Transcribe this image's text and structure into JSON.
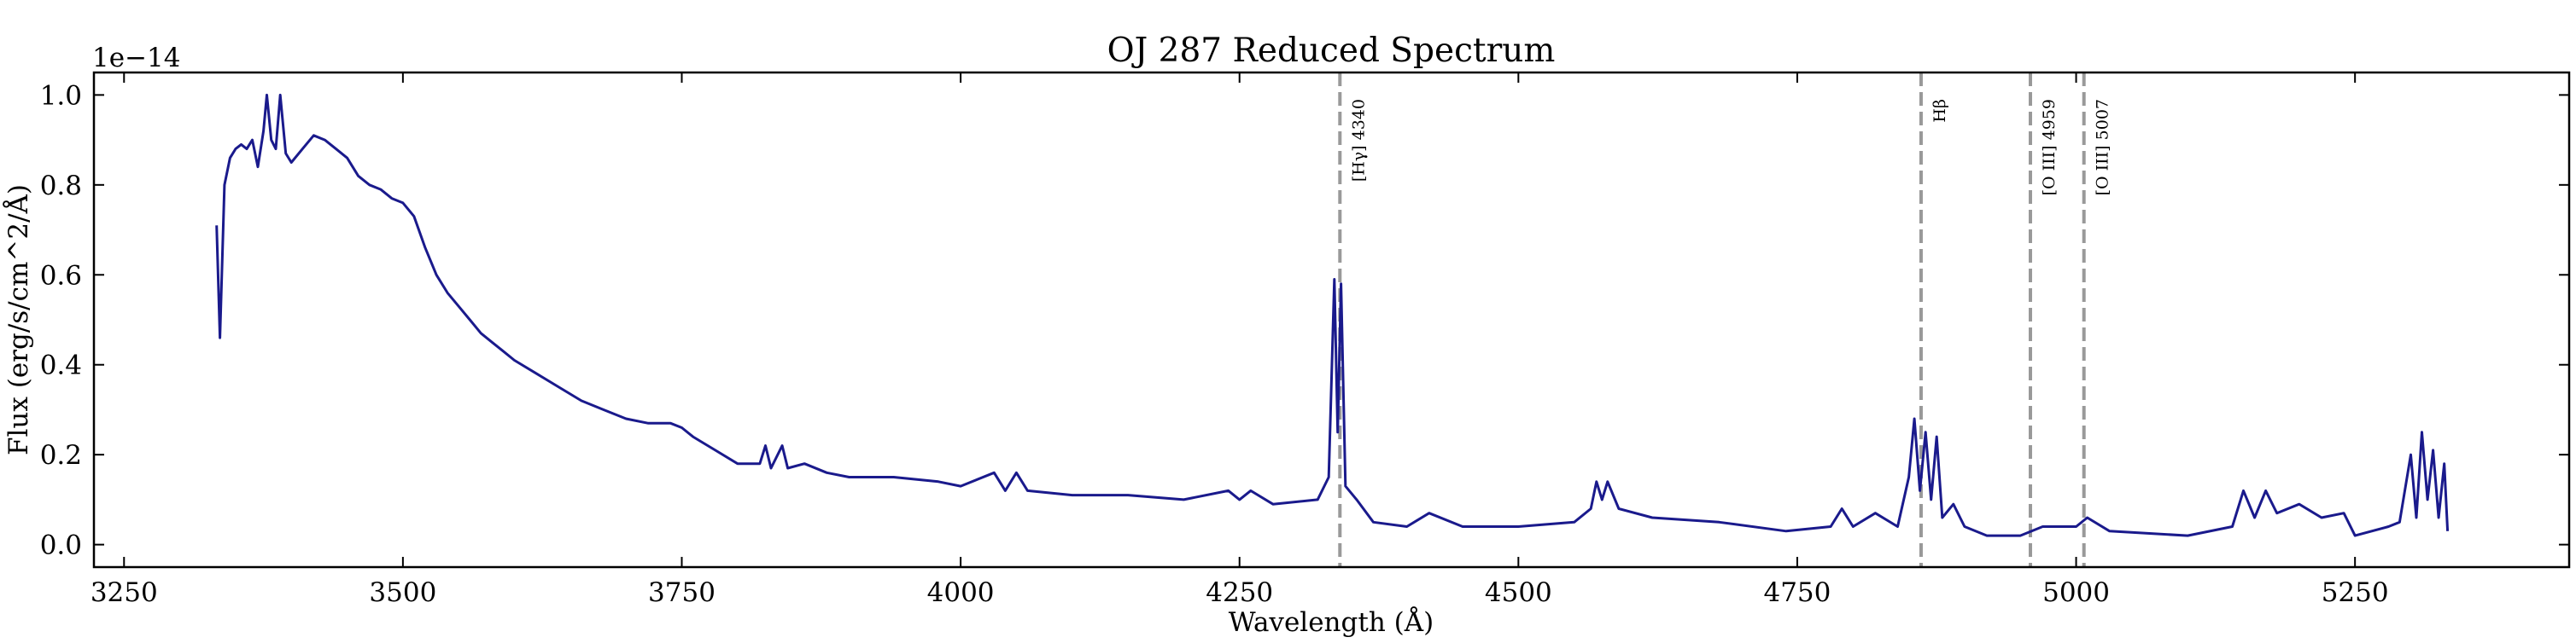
{
  "chart_data": {
    "type": "line",
    "title": "OJ 287 Reduced Spectrum",
    "x_label": "Wavelength (Å)",
    "y_label": "Flux (erg/s/cm^2/Å)",
    "y_offset_label": "1e−14",
    "x": [
      3333,
      3336,
      3340,
      3345,
      3350,
      3355,
      3360,
      3365,
      3370,
      3375,
      3378,
      3382,
      3386,
      3390,
      3395,
      3400,
      3410,
      3420,
      3430,
      3440,
      3450,
      3460,
      3470,
      3480,
      3490,
      3500,
      3510,
      3520,
      3530,
      3540,
      3550,
      3560,
      3570,
      3580,
      3590,
      3600,
      3620,
      3640,
      3660,
      3680,
      3700,
      3720,
      3740,
      3750,
      3760,
      3780,
      3800,
      3820,
      3825,
      3830,
      3840,
      3845,
      3860,
      3880,
      3900,
      3940,
      3980,
      4000,
      4030,
      4040,
      4050,
      4060,
      4100,
      4150,
      4200,
      4240,
      4250,
      4260,
      4280,
      4320,
      4330,
      4335,
      4338,
      4341,
      4345,
      4355,
      4370,
      4400,
      4420,
      4450,
      4500,
      4550,
      4565,
      4570,
      4575,
      4580,
      4590,
      4620,
      4680,
      4740,
      4780,
      4790,
      4800,
      4820,
      4840,
      4850,
      4855,
      4860,
      4865,
      4870,
      4875,
      4880,
      4890,
      4900,
      4920,
      4950,
      4970,
      5000,
      5010,
      5030,
      5100,
      5140,
      5150,
      5160,
      5170,
      5180,
      5200,
      5220,
      5240,
      5250,
      5280,
      5290,
      5300,
      5305,
      5310,
      5315,
      5320,
      5325,
      5330,
      5333
    ],
    "series": [
      {
        "color": "#1a1a8c",
        "values": [
          0.71,
          0.46,
          0.8,
          0.86,
          0.88,
          0.89,
          0.88,
          0.9,
          0.84,
          0.92,
          1.0,
          0.9,
          0.88,
          1.0,
          0.87,
          0.85,
          0.88,
          0.91,
          0.9,
          0.88,
          0.86,
          0.82,
          0.8,
          0.79,
          0.77,
          0.76,
          0.73,
          0.66,
          0.6,
          0.56,
          0.53,
          0.5,
          0.47,
          0.45,
          0.43,
          0.41,
          0.38,
          0.35,
          0.32,
          0.3,
          0.28,
          0.27,
          0.27,
          0.26,
          0.24,
          0.21,
          0.18,
          0.18,
          0.22,
          0.17,
          0.22,
          0.17,
          0.18,
          0.16,
          0.15,
          0.15,
          0.14,
          0.13,
          0.16,
          0.12,
          0.16,
          0.12,
          0.11,
          0.11,
          0.1,
          0.12,
          0.1,
          0.12,
          0.09,
          0.1,
          0.15,
          0.59,
          0.25,
          0.58,
          0.13,
          0.1,
          0.05,
          0.04,
          0.07,
          0.04,
          0.04,
          0.05,
          0.08,
          0.14,
          0.1,
          0.14,
          0.08,
          0.06,
          0.05,
          0.03,
          0.04,
          0.08,
          0.04,
          0.07,
          0.04,
          0.15,
          0.28,
          0.12,
          0.25,
          0.1,
          0.24,
          0.06,
          0.09,
          0.04,
          0.02,
          0.02,
          0.04,
          0.04,
          0.06,
          0.03,
          0.02,
          0.04,
          0.12,
          0.06,
          0.12,
          0.07,
          0.09,
          0.06,
          0.07,
          0.02,
          0.04,
          0.05,
          0.2,
          0.06,
          0.25,
          0.1,
          0.21,
          0.06,
          0.18,
          0.03
        ]
      }
    ],
    "vlines": [
      {
        "x": 4340,
        "label": "[Hγ] 4340"
      },
      {
        "x": 4861,
        "label": "Hβ"
      },
      {
        "x": 4959,
        "label": "[O III] 4959"
      },
      {
        "x": 5007,
        "label": "[O III] 5007"
      }
    ],
    "vline_color": "#999999",
    "xlim": [
      3223,
      5442
    ],
    "ylim": [
      -0.05,
      1.05
    ],
    "xticks": [
      3250,
      3500,
      3750,
      4000,
      4250,
      4500,
      4750,
      5000,
      5250
    ],
    "yticks": [
      {
        "value": 0,
        "label": "0.0"
      },
      {
        "value": 0.2,
        "label": "0.2"
      },
      {
        "value": 0.4,
        "label": "0.4"
      },
      {
        "value": 0.6,
        "label": "0.6"
      },
      {
        "value": 0.8,
        "label": "0.8"
      },
      {
        "value": 1,
        "label": "1.0"
      }
    ]
  }
}
